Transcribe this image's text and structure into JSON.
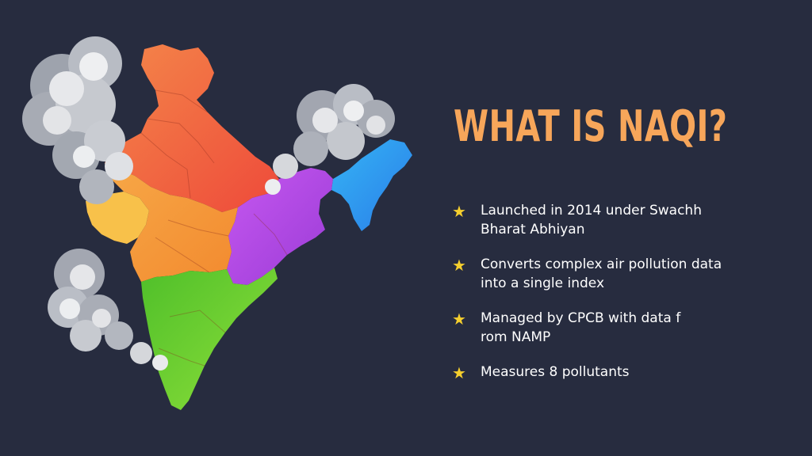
{
  "slide": {
    "title": "WHAT IS NAQI?",
    "bullet_icon": "star-icon",
    "colors": {
      "background": "#272c3f",
      "title": "#f7a65a",
      "star": "#f5cf2e",
      "text": "#ffffff"
    },
    "bullets": [
      {
        "text": "Launched in 2014 under Swachh\nBharat Abhiyan"
      },
      {
        "text": "Converts complex air pollution data\ninto a single index"
      },
      {
        "text": "Managed by CPCB with data f\nrom NAMP"
      },
      {
        "text": "Measures 8 pollutants"
      }
    ]
  },
  "illustration": {
    "subject": "map-of-india-with-smoke-clouds",
    "region_colors": {
      "north": "#f0663f",
      "northeast": "#2f9bef",
      "east": "#b24ae6",
      "west": "#f8c14a",
      "central": "#f59a38",
      "south": "#6ac82a"
    }
  }
}
